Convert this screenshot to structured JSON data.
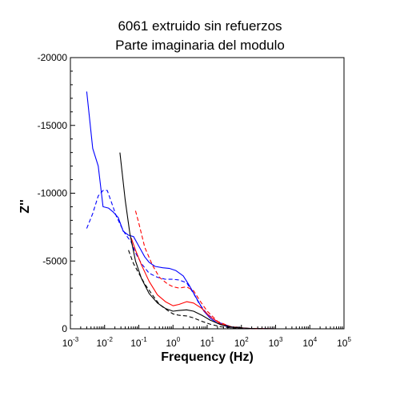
{
  "chart_data": {
    "type": "line",
    "title": [
      "6061 extruido sin refuerzos",
      "Parte imaginaria del modulo"
    ],
    "xlabel": "Frequency (Hz)",
    "ylabel": "Z''",
    "x_scale": "log",
    "xlim": [
      0.001,
      100000
    ],
    "ylim": [
      0,
      -20000
    ],
    "y_inverted": true,
    "grid": false,
    "legend": "none",
    "x_ticks": [
      {
        "base": "10",
        "exp": "-3",
        "value": 0.001
      },
      {
        "base": "10",
        "exp": "-2",
        "value": 0.01
      },
      {
        "base": "10",
        "exp": "-1",
        "value": 0.1
      },
      {
        "base": "10",
        "exp": "0",
        "value": 1
      },
      {
        "base": "10",
        "exp": "1",
        "value": 10
      },
      {
        "base": "10",
        "exp": "2",
        "value": 100
      },
      {
        "base": "10",
        "exp": "3",
        "value": 1000
      },
      {
        "base": "10",
        "exp": "4",
        "value": 10000
      },
      {
        "base": "10",
        "exp": "5",
        "value": 100000
      }
    ],
    "y_ticks": [
      {
        "label": "-20000",
        "value": -20000
      },
      {
        "label": "-15000",
        "value": -15000
      },
      {
        "label": "-10000",
        "value": -10000
      },
      {
        "label": "-5000",
        "value": -5000
      },
      {
        "label": "0",
        "value": 0
      }
    ],
    "series": [
      {
        "color": "#0000ff",
        "dash": "solid",
        "points": [
          [
            0.003,
            -17500
          ],
          [
            0.0045,
            -13300
          ],
          [
            0.0065,
            -12000
          ],
          [
            0.009,
            -9000
          ],
          [
            0.013,
            -8900
          ],
          [
            0.018,
            -8600
          ],
          [
            0.025,
            -8200
          ],
          [
            0.035,
            -7200
          ],
          [
            0.05,
            -6900
          ],
          [
            0.07,
            -6800
          ],
          [
            0.1,
            -6100
          ],
          [
            0.15,
            -5300
          ],
          [
            0.2,
            -4900
          ],
          [
            0.3,
            -4600
          ],
          [
            0.5,
            -4500
          ],
          [
            0.8,
            -4450
          ],
          [
            1.2,
            -4300
          ],
          [
            2,
            -3900
          ],
          [
            3,
            -3200
          ],
          [
            5,
            -2200
          ],
          [
            8,
            -1300
          ],
          [
            12,
            -800
          ],
          [
            20,
            -400
          ],
          [
            40,
            -150
          ],
          [
            100,
            -50
          ],
          [
            300,
            -10
          ],
          [
            1000,
            0
          ],
          [
            100000,
            0
          ]
        ]
      },
      {
        "color": "#0000ff",
        "dash": "dashed",
        "points": [
          [
            0.003,
            -7400
          ],
          [
            0.0045,
            -8500
          ],
          [
            0.0065,
            -9800
          ],
          [
            0.009,
            -10200
          ],
          [
            0.012,
            -10200
          ],
          [
            0.016,
            -9300
          ],
          [
            0.022,
            -8300
          ],
          [
            0.03,
            -7600
          ],
          [
            0.04,
            -7000
          ],
          [
            0.06,
            -6400
          ],
          [
            0.08,
            -5600
          ],
          [
            0.12,
            -4800
          ],
          [
            0.2,
            -4100
          ],
          [
            0.35,
            -3800
          ],
          [
            0.6,
            -3650
          ],
          [
            1,
            -3650
          ],
          [
            1.5,
            -3600
          ],
          [
            2.5,
            -3400
          ],
          [
            4,
            -2600
          ],
          [
            6,
            -1800
          ],
          [
            10,
            -1100
          ],
          [
            20,
            -500
          ],
          [
            50,
            -150
          ],
          [
            150,
            -30
          ],
          [
            1000,
            0
          ],
          [
            100000,
            0
          ]
        ]
      },
      {
        "color": "#ff0000",
        "dash": "dashed",
        "points": [
          [
            0.08,
            -8700
          ],
          [
            0.1,
            -7800
          ],
          [
            0.15,
            -6000
          ],
          [
            0.25,
            -4700
          ],
          [
            0.4,
            -3800
          ],
          [
            0.7,
            -3300
          ],
          [
            1,
            -3100
          ],
          [
            1.5,
            -3000
          ],
          [
            2.5,
            -3100
          ],
          [
            4,
            -2800
          ],
          [
            6,
            -2100
          ],
          [
            10,
            -1300
          ],
          [
            20,
            -550
          ],
          [
            50,
            -150
          ],
          [
            150,
            -30
          ],
          [
            1000,
            0
          ],
          [
            100000,
            0
          ]
        ]
      },
      {
        "color": "#ff0000",
        "dash": "solid",
        "points": [
          [
            0.06,
            -6700
          ],
          [
            0.08,
            -5800
          ],
          [
            0.12,
            -4700
          ],
          [
            0.2,
            -3500
          ],
          [
            0.35,
            -2500
          ],
          [
            0.6,
            -2000
          ],
          [
            1,
            -1700
          ],
          [
            1.5,
            -1800
          ],
          [
            2.5,
            -2000
          ],
          [
            4,
            -1900
          ],
          [
            7,
            -1500
          ],
          [
            12,
            -900
          ],
          [
            25,
            -350
          ],
          [
            60,
            -100
          ],
          [
            200,
            -20
          ],
          [
            1000,
            0
          ],
          [
            100000,
            0
          ]
        ]
      },
      {
        "color": "#000000",
        "dash": "solid",
        "points": [
          [
            0.028,
            -13000
          ],
          [
            0.04,
            -9500
          ],
          [
            0.055,
            -7000
          ],
          [
            0.08,
            -5000
          ],
          [
            0.12,
            -3700
          ],
          [
            0.2,
            -2600
          ],
          [
            0.35,
            -1900
          ],
          [
            0.6,
            -1500
          ],
          [
            1,
            -1300
          ],
          [
            1.5,
            -1350
          ],
          [
            2.5,
            -1400
          ],
          [
            4,
            -1300
          ],
          [
            7,
            -1000
          ],
          [
            12,
            -650
          ],
          [
            25,
            -300
          ],
          [
            60,
            -100
          ],
          [
            200,
            -20
          ],
          [
            1000,
            0
          ],
          [
            100000,
            0
          ]
        ]
      },
      {
        "color": "#000000",
        "dash": "dashed",
        "points": [
          [
            0.05,
            -5800
          ],
          [
            0.07,
            -4800
          ],
          [
            0.1,
            -4100
          ],
          [
            0.15,
            -3300
          ],
          [
            0.25,
            -2500
          ],
          [
            0.4,
            -1800
          ],
          [
            0.7,
            -1350
          ],
          [
            1,
            -1100
          ],
          [
            1.5,
            -1000
          ],
          [
            2.5,
            -950
          ],
          [
            4,
            -800
          ],
          [
            7,
            -550
          ],
          [
            12,
            -350
          ],
          [
            25,
            -150
          ],
          [
            60,
            -50
          ],
          [
            200,
            -10
          ],
          [
            1000,
            0
          ],
          [
            100000,
            0
          ]
        ]
      }
    ]
  }
}
